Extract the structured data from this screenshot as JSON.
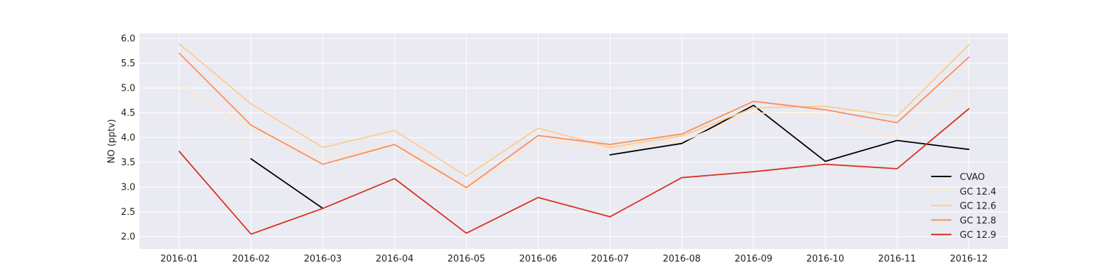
{
  "chart_data": {
    "type": "line",
    "title": "",
    "xlabel": "",
    "ylabel": "NO (pptv)",
    "ylim": [
      1.75,
      6.1
    ],
    "yticks": [
      "2.0",
      "2.5",
      "3.0",
      "3.5",
      "4.0",
      "4.5",
      "5.0",
      "5.5",
      "6.0"
    ],
    "grid": true,
    "background": "#eaeaf2",
    "grid_color": "#ffffff",
    "legend_position": "lower-right",
    "x": [
      "2016-01",
      "2016-02",
      "2016-03",
      "2016-04",
      "2016-05",
      "2016-06",
      "2016-07",
      "2016-08",
      "2016-09",
      "2016-10",
      "2016-11",
      "2016-12"
    ],
    "series": [
      {
        "name": "CVAO",
        "color": "#000000",
        "values": [
          null,
          3.57,
          2.57,
          null,
          null,
          null,
          3.65,
          3.88,
          4.65,
          3.52,
          3.94,
          3.76
        ]
      },
      {
        "name": "GC 12.4",
        "color": "#fee8c8",
        "values": [
          5.08,
          4.18,
          3.6,
          3.85,
          2.95,
          3.95,
          3.78,
          3.92,
          4.5,
          4.45,
          4.0,
          5.14
        ]
      },
      {
        "name": "GC 12.6",
        "color": "#fdcc8a",
        "values": [
          5.89,
          4.68,
          3.8,
          4.14,
          3.22,
          4.19,
          3.8,
          4.03,
          4.6,
          4.63,
          4.43,
          5.87
        ]
      },
      {
        "name": "GC 12.8",
        "color": "#fc8d59",
        "values": [
          5.7,
          4.25,
          3.46,
          3.86,
          2.99,
          4.04,
          3.86,
          4.07,
          4.73,
          4.56,
          4.3,
          5.62
        ]
      },
      {
        "name": "GC 12.9",
        "color": "#d7301f",
        "values": [
          3.72,
          2.05,
          2.57,
          3.17,
          2.07,
          2.79,
          2.4,
          3.19,
          3.31,
          3.46,
          3.37,
          4.58
        ]
      }
    ]
  }
}
